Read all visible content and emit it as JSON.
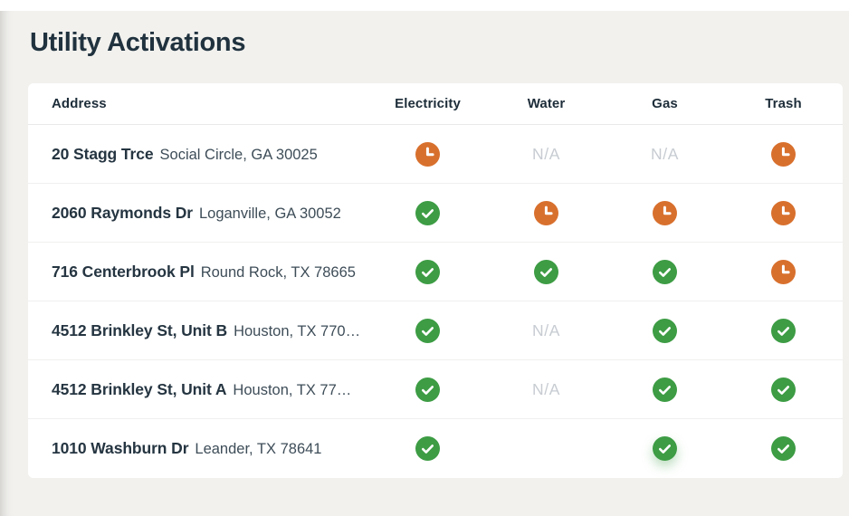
{
  "page": {
    "title": "Utility Activations"
  },
  "colors": {
    "background": "#f2f1ee",
    "heading_navy": "#20323e",
    "success_green": "#3d9c44",
    "pending_orange": "#d8702d",
    "na_gray": "#c7ccd2"
  },
  "table": {
    "na_label": "N/A",
    "columns": [
      "Address",
      "Electricity",
      "Water",
      "Gas",
      "Trash"
    ],
    "rows": [
      {
        "address": "20 Stagg Trce",
        "location": "Social Circle, GA 30025",
        "electricity": "pending",
        "water": "na",
        "gas": "na",
        "trash": "pending"
      },
      {
        "address": "2060 Raymonds Dr",
        "location": "Loganville, GA 30052",
        "electricity": "activated",
        "water": "pending",
        "gas": "pending",
        "trash": "pending"
      },
      {
        "address": "716 Centerbrook Pl",
        "location": "Round Rock, TX 78665",
        "electricity": "activated",
        "water": "activated",
        "gas": "activated",
        "trash": "pending"
      },
      {
        "address": "4512 Brinkley St, Unit B",
        "location": "Houston, TX 770…",
        "electricity": "activated",
        "water": "na",
        "gas": "activated",
        "trash": "activated"
      },
      {
        "address": "4512 Brinkley St, Unit A",
        "location": "Houston, TX 77…",
        "electricity": "activated",
        "water": "na",
        "gas": "activated",
        "trash": "activated"
      },
      {
        "address": "1010 Washburn Dr",
        "location": "Leander, TX 78641",
        "electricity": "activated",
        "water": "",
        "gas": "activated",
        "trash": "activated"
      }
    ]
  }
}
